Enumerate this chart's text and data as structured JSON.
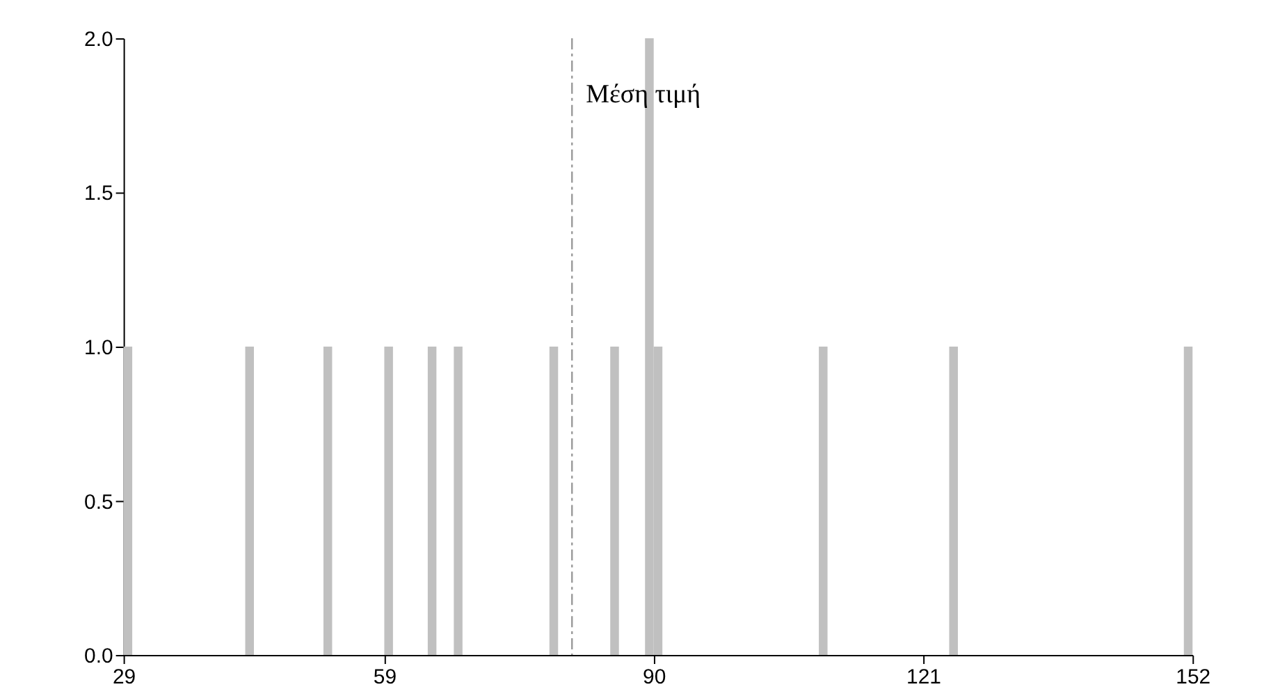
{
  "chart_data": {
    "type": "bar",
    "x": [
      29,
      43,
      52,
      59,
      64,
      67,
      78,
      85,
      89,
      90,
      109,
      124,
      151
    ],
    "values": [
      1,
      1,
      1,
      1,
      1,
      1,
      1,
      1,
      2,
      1,
      1,
      1,
      1
    ],
    "color": "#c0c0c0",
    "xlim": [
      29,
      152
    ],
    "xticks": [
      29,
      59,
      90,
      121,
      152
    ],
    "ylim": [
      0,
      2
    ],
    "yticks": [
      {
        "value": 0,
        "label": "0.0"
      },
      {
        "value": 0.5,
        "label": "0.5"
      },
      {
        "value": 1,
        "label": "1.0"
      },
      {
        "value": 1.5,
        "label": "1.5"
      },
      {
        "value": 2,
        "label": "2.0"
      }
    ],
    "ref_lines": [
      {
        "axis": "x",
        "value": 80.6,
        "label": "Μέση τιμή",
        "color": "#999999",
        "line_style": "dashdot"
      }
    ],
    "grid": false
  }
}
